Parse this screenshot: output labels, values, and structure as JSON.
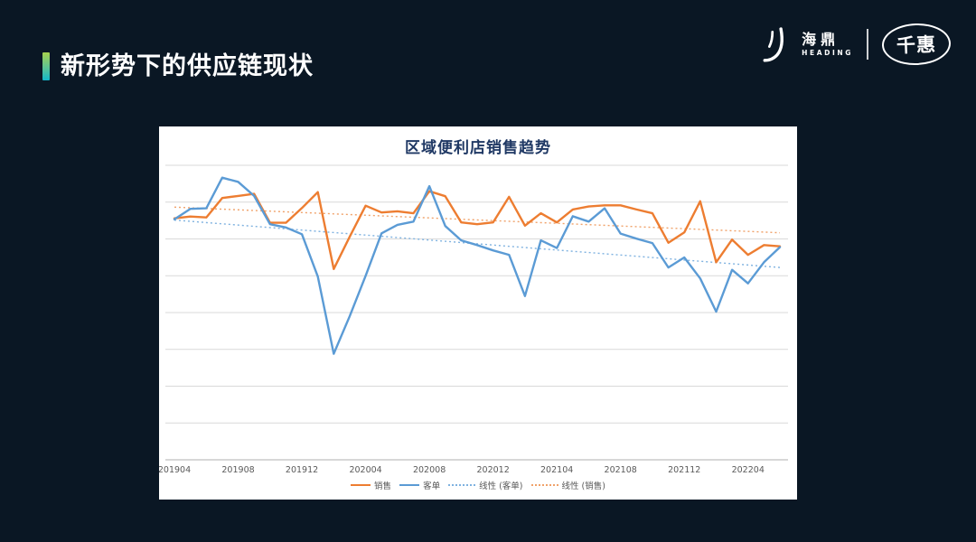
{
  "slide": {
    "title": "新形势下的供应链现状",
    "background_color": "#0a1724",
    "accent_gradient": [
      "#a6d14e",
      "#12b7c9"
    ]
  },
  "logo": {
    "company": "海鼎",
    "company_sub": "HEADING",
    "brand": "千惠"
  },
  "chart_data": {
    "type": "line",
    "title": "区域便利店销售趋势",
    "title_color": "#1f3864",
    "x": [
      "201904",
      "201905",
      "201906",
      "201907",
      "201908",
      "201909",
      "201910",
      "201911",
      "201912",
      "202001",
      "202002",
      "202003",
      "202004",
      "202005",
      "202006",
      "202007",
      "202008",
      "202009",
      "202010",
      "202011",
      "202012",
      "202101",
      "202102",
      "202103",
      "202104",
      "202105",
      "202106",
      "202107",
      "202108",
      "202109",
      "202110",
      "202111",
      "202112",
      "202201",
      "202202",
      "202203",
      "202204",
      "202205",
      "202206"
    ],
    "x_tick_labels": [
      "201904",
      "201908",
      "201912",
      "202004",
      "202008",
      "202012",
      "202104",
      "202108",
      "202112",
      "202204"
    ],
    "ylim": [
      0,
      100
    ],
    "y_axis_labels_visible": false,
    "y_note": "y axis unlabeled in source; values are percent of plot height",
    "grid": true,
    "gridline_count": 9,
    "legend_position": "bottom",
    "colors": {
      "grid": "#d9d9d9",
      "axis": "#bfbfbf",
      "tick_text": "#595959"
    },
    "series": [
      {
        "name": "销售",
        "kind": "line",
        "style": "solid",
        "color": "#ED7D31",
        "values": [
          82.0,
          82.6,
          82.3,
          88.9,
          89.6,
          90.3,
          80.5,
          80.5,
          85.5,
          90.9,
          64.8,
          75.7,
          86.3,
          84.0,
          84.4,
          83.7,
          91.2,
          89.5,
          80.6,
          80.0,
          80.6,
          89.3,
          79.5,
          83.7,
          80.6,
          85.0,
          86.0,
          86.4,
          86.4,
          85.0,
          83.7,
          73.7,
          77.2,
          87.8,
          67.1,
          74.8,
          69.6,
          72.9,
          72.5
        ]
      },
      {
        "name": "客单",
        "kind": "line",
        "style": "solid",
        "color": "#5B9BD5",
        "values": [
          81.7,
          85.2,
          85.4,
          95.8,
          94.4,
          89.6,
          80.0,
          78.9,
          76.6,
          62.2,
          36.0,
          48.7,
          62.5,
          76.9,
          79.8,
          80.9,
          92.9,
          79.4,
          74.5,
          72.9,
          71.1,
          69.6,
          55.6,
          74.5,
          71.9,
          82.7,
          80.9,
          85.4,
          76.8,
          75.1,
          73.6,
          65.3,
          68.7,
          61.6,
          50.3,
          64.5,
          59.9,
          67.1,
          72.2
        ]
      },
      {
        "name": "线性 (客单)",
        "kind": "trend",
        "style": "dotted",
        "color": "#7fb2e0",
        "trend": [
          81.4,
          65.3
        ]
      },
      {
        "name": "线性 (销售)",
        "kind": "trend",
        "style": "dotted",
        "color": "#f0a26a",
        "trend": [
          85.8,
          77.1
        ]
      }
    ]
  }
}
